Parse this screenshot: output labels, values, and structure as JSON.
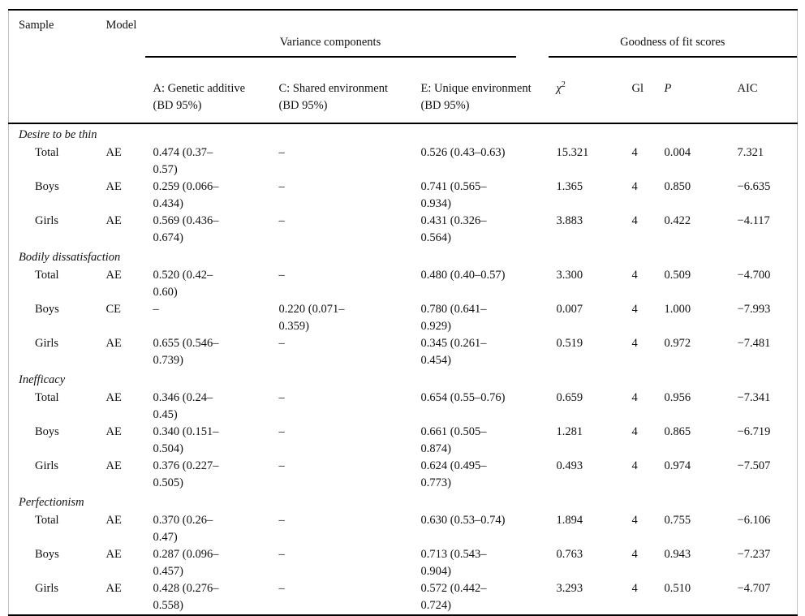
{
  "table": {
    "spanners": {
      "variance": "Variance components",
      "goodness": "Goodness of fit scores"
    },
    "columns": {
      "sample": "Sample",
      "model": "Model",
      "a": "A: Genetic additive\n(BD 95%)",
      "c": "C: Shared environment\n(BD 95%)",
      "e": "E: Unique environment\n(BD 95%)",
      "chi": "χ",
      "chi_sup": "2",
      "gl": "Gl",
      "p": "P",
      "aic": "AIC"
    },
    "sections": [
      {
        "title": "Desire to be thin",
        "rows": [
          {
            "sample": "Total",
            "model": "AE",
            "a": "0.474 (0.37–\n0.57)",
            "c": "–",
            "e": "0.526 (0.43–0.63)",
            "chi2": "15.321",
            "gl": "4",
            "p": "0.004",
            "aic": "7.321"
          },
          {
            "sample": "Boys",
            "model": "AE",
            "a": "0.259 (0.066–\n0.434)",
            "c": "–",
            "e": "0.741 (0.565–\n0.934)",
            "chi2": "1.365",
            "gl": "4",
            "p": "0.850",
            "aic": "−6.635"
          },
          {
            "sample": "Girls",
            "model": "AE",
            "a": "0.569 (0.436–\n0.674)",
            "c": "–",
            "e": "0.431 (0.326–\n0.564)",
            "chi2": "3.883",
            "gl": "4",
            "p": "0.422",
            "aic": "−4.117"
          }
        ]
      },
      {
        "title": "Bodily dissatisfaction",
        "rows": [
          {
            "sample": "Total",
            "model": "AE",
            "a": "0.520 (0.42–\n0.60)",
            "c": "–",
            "e": "0.480 (0.40–0.57)",
            "chi2": "3.300",
            "gl": "4",
            "p": "0.509",
            "aic": "−4.700"
          },
          {
            "sample": "Boys",
            "model": "CE",
            "a": "–",
            "c": "0.220 (0.071–\n0.359)",
            "e": "0.780 (0.641–\n0.929)",
            "chi2": "0.007",
            "gl": "4",
            "p": "1.000",
            "aic": "−7.993"
          },
          {
            "sample": "Girls",
            "model": "AE",
            "a": "0.655 (0.546–\n0.739)",
            "c": "–",
            "e": "0.345 (0.261–\n0.454)",
            "chi2": "0.519",
            "gl": "4",
            "p": "0.972",
            "aic": "−7.481"
          }
        ]
      },
      {
        "title": "Inefficacy",
        "rows": [
          {
            "sample": "Total",
            "model": "AE",
            "a": "0.346 (0.24–\n0.45)",
            "c": "–",
            "e": "0.654 (0.55–0.76)",
            "chi2": "0.659",
            "gl": "4",
            "p": "0.956",
            "aic": "−7.341"
          },
          {
            "sample": "Boys",
            "model": "AE",
            "a": "0.340 (0.151–\n0.504)",
            "c": "–",
            "e": "0.661 (0.505–\n0.874)",
            "chi2": "1.281",
            "gl": "4",
            "p": "0.865",
            "aic": "−6.719"
          },
          {
            "sample": "Girls",
            "model": "AE",
            "a": "0.376 (0.227–\n0.505)",
            "c": "–",
            "e": "0.624 (0.495–\n0.773)",
            "chi2": "0.493",
            "gl": "4",
            "p": "0.974",
            "aic": "−7.507"
          }
        ]
      },
      {
        "title": "Perfectionism",
        "rows": [
          {
            "sample": "Total",
            "model": "AE",
            "a": "0.370 (0.26–\n0.47)",
            "c": "–",
            "e": "0.630 (0.53–0.74)",
            "chi2": "1.894",
            "gl": "4",
            "p": "0.755",
            "aic": "−6.106"
          },
          {
            "sample": "Boys",
            "model": "AE",
            "a": "0.287 (0.096–\n0.457)",
            "c": "–",
            "e": "0.713 (0.543–\n0.904)",
            "chi2": "0.763",
            "gl": "4",
            "p": "0.943",
            "aic": "−7.237"
          },
          {
            "sample": "Girls",
            "model": "AE",
            "a": "0.428 (0.276–\n0.558)",
            "c": "–",
            "e": "0.572 (0.442–\n0.724)",
            "chi2": "3.293",
            "gl": "4",
            "p": "0.510",
            "aic": "−4.707"
          }
        ]
      }
    ]
  }
}
